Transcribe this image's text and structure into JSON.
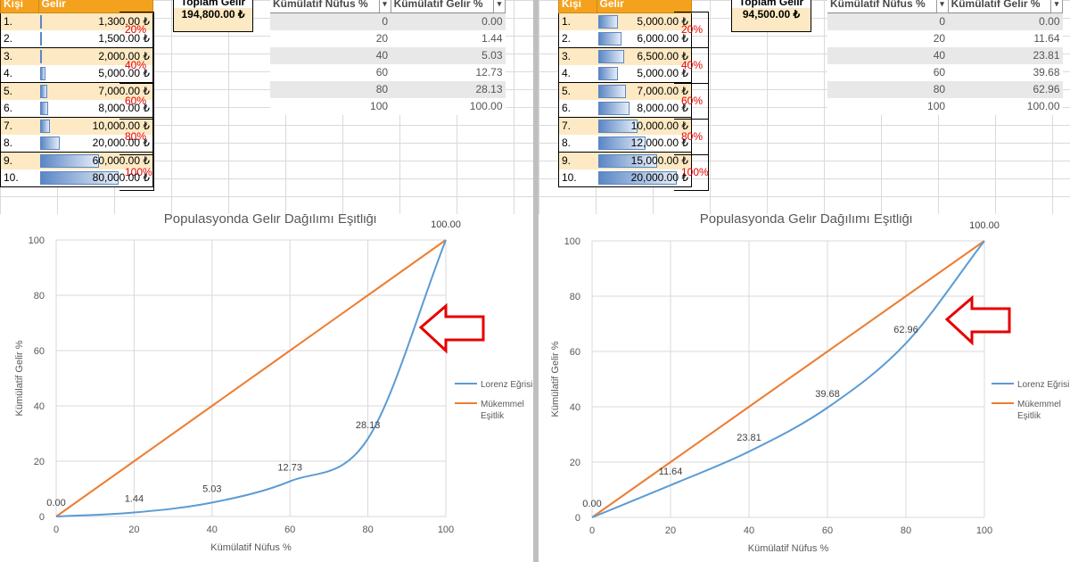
{
  "panels": [
    {
      "people_header": {
        "person": "Kişi",
        "income": "Gelir"
      },
      "people": [
        {
          "idx": "1.",
          "income": "1,300.00 ₺",
          "value": 1300
        },
        {
          "idx": "2.",
          "income": "1,500.00 ₺",
          "value": 1500
        },
        {
          "idx": "3.",
          "income": "2,000.00 ₺",
          "value": 2000
        },
        {
          "idx": "4.",
          "income": "5,000.00 ₺",
          "value": 5000
        },
        {
          "idx": "5.",
          "income": "7,000.00 ₺",
          "value": 7000
        },
        {
          "idx": "6.",
          "income": "8,000.00 ₺",
          "value": 8000
        },
        {
          "idx": "7.",
          "income": "10,000.00 ₺",
          "value": 10000
        },
        {
          "idx": "8.",
          "income": "20,000.00 ₺",
          "value": 20000
        },
        {
          "idx": "9.",
          "income": "60,000.00 ₺",
          "value": 60000
        },
        {
          "idx": "10.",
          "income": "80,000.00 ₺",
          "value": 80000
        }
      ],
      "groups": [
        "20%",
        "40%",
        "60%",
        "80%",
        "100%"
      ],
      "total_label": "Toplam Gelir",
      "total_value": "194,800.00 ₺",
      "cum_header": {
        "pop": "Kümülatif Nüfus %",
        "inc": "Kümülatif Gelir %"
      },
      "cum_rows": [
        {
          "pop": "0",
          "inc": "0.00"
        },
        {
          "pop": "20",
          "inc": "1.44"
        },
        {
          "pop": "40",
          "inc": "5.03"
        },
        {
          "pop": "60",
          "inc": "12.73"
        },
        {
          "pop": "80",
          "inc": "28.13"
        },
        {
          "pop": "100",
          "inc": "100.00"
        }
      ]
    },
    {
      "people_header": {
        "person": "Kişi",
        "income": "Gelir"
      },
      "people": [
        {
          "idx": "1.",
          "income": "5,000.00 ₺",
          "value": 5000
        },
        {
          "idx": "2.",
          "income": "6,000.00 ₺",
          "value": 6000
        },
        {
          "idx": "3.",
          "income": "6,500.00 ₺",
          "value": 6500
        },
        {
          "idx": "4.",
          "income": "5,000.00 ₺",
          "value": 5000
        },
        {
          "idx": "5.",
          "income": "7,000.00 ₺",
          "value": 7000
        },
        {
          "idx": "6.",
          "income": "8,000.00 ₺",
          "value": 8000
        },
        {
          "idx": "7.",
          "income": "10,000.00 ₺",
          "value": 10000
        },
        {
          "idx": "8.",
          "income": "12,000.00 ₺",
          "value": 12000
        },
        {
          "idx": "9.",
          "income": "15,000.00 ₺",
          "value": 15000
        },
        {
          "idx": "10.",
          "income": "20,000.00 ₺",
          "value": 20000
        }
      ],
      "groups": [
        "20%",
        "40%",
        "60%",
        "80%",
        "100%"
      ],
      "total_label": "Toplam Gelir",
      "total_value": "94,500.00 ₺",
      "cum_header": {
        "pop": "Kümülatif Nüfus %",
        "inc": "Kümülatif Gelir %"
      },
      "cum_rows": [
        {
          "pop": "0",
          "inc": "0.00"
        },
        {
          "pop": "20",
          "inc": "11.64"
        },
        {
          "pop": "40",
          "inc": "23.81"
        },
        {
          "pop": "60",
          "inc": "39.68"
        },
        {
          "pop": "80",
          "inc": "62.96"
        },
        {
          "pop": "100",
          "inc": "100.00"
        }
      ]
    }
  ],
  "colors": {
    "lorenz": "#5b9bd5",
    "equality": "#ed7d31",
    "arrow": "#e60000",
    "header": "#f4a21d",
    "band": "#fde9c3"
  },
  "chart_data": [
    {
      "type": "line",
      "title": "Populasyonda Gelir Dağılımı Eşitliği",
      "xlabel": "Kümülatif Nüfus %",
      "ylabel": "Kümülatif Gelir %",
      "xlim": [
        0,
        100
      ],
      "ylim": [
        0,
        100
      ],
      "xticks": [
        0,
        20,
        40,
        60,
        80,
        100
      ],
      "yticks": [
        0,
        20,
        40,
        60,
        80,
        100
      ],
      "grid": true,
      "legend": "right",
      "x": [
        0,
        20,
        40,
        60,
        80,
        100
      ],
      "series": [
        {
          "name": "Lorenz Eğrisi",
          "values": [
            0,
            1.44,
            5.03,
            12.73,
            28.13,
            100
          ],
          "labels": [
            "0.00",
            "1.44",
            "5.03",
            "12.73",
            "28.13",
            "100.00"
          ]
        },
        {
          "name": "Mükemmel Eşitlik",
          "values": [
            0,
            20,
            40,
            60,
            80,
            100
          ]
        }
      ],
      "annotation": "arrow-left"
    },
    {
      "type": "line",
      "title": "Populasyonda Gelir Dağılımı Eşitliği",
      "xlabel": "Kümülatif Nüfus %",
      "ylabel": "Kümülatif Gelir %",
      "xlim": [
        0,
        100
      ],
      "ylim": [
        0,
        100
      ],
      "xticks": [
        0,
        20,
        40,
        60,
        80,
        100
      ],
      "yticks": [
        0,
        20,
        40,
        60,
        80,
        100
      ],
      "grid": true,
      "legend": "right",
      "x": [
        0,
        20,
        40,
        60,
        80,
        100
      ],
      "series": [
        {
          "name": "Lorenz Eğrisi",
          "values": [
            0,
            11.64,
            23.81,
            39.68,
            62.96,
            100
          ],
          "labels": [
            "0.00",
            "11.64",
            "23.81",
            "39.68",
            "62.96",
            "100.00"
          ]
        },
        {
          "name": "Mükemmel Eşitlik",
          "values": [
            0,
            20,
            40,
            60,
            80,
            100
          ]
        }
      ],
      "annotation": "arrow-left"
    }
  ]
}
